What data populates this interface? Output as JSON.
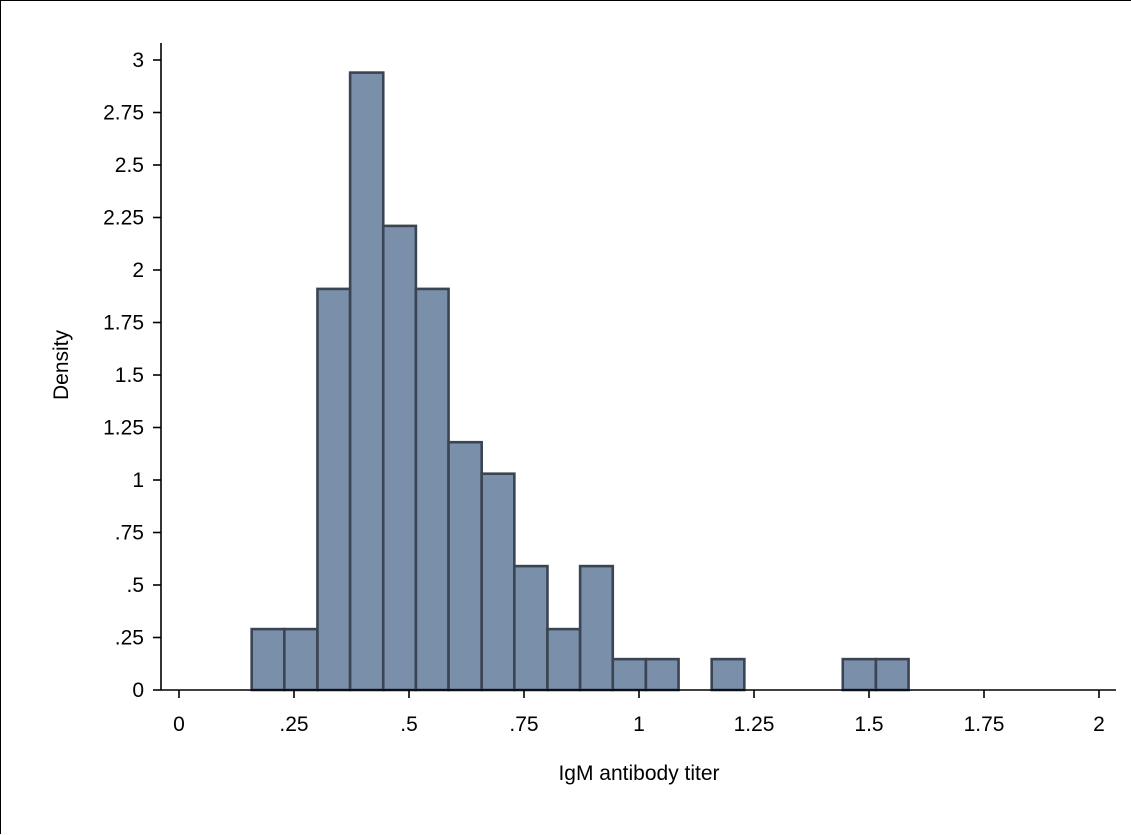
{
  "chart_data": {
    "type": "bar",
    "subtype": "histogram",
    "title": "",
    "xlabel": "IgM antibody titer",
    "ylabel": "Density",
    "xlim": [
      0,
      2
    ],
    "ylim": [
      0,
      3
    ],
    "x_ticks": [
      0,
      0.25,
      0.5,
      0.75,
      1,
      1.25,
      1.5,
      1.75,
      2
    ],
    "x_tick_labels": [
      "0",
      ".25",
      ".5",
      ".75",
      "1",
      "1.25",
      "1.5",
      "1.75",
      "2"
    ],
    "y_ticks": [
      0,
      0.25,
      0.5,
      0.75,
      1,
      1.25,
      1.5,
      1.75,
      2,
      2.25,
      2.5,
      2.75,
      3
    ],
    "y_tick_labels": [
      "0",
      ".25",
      ".5",
      ".75",
      "1",
      "1.25",
      "1.5",
      "1.75",
      "2",
      "2.25",
      "2.5",
      "2.75",
      "3"
    ],
    "bin_start": 0.158,
    "bin_width": 0.0714,
    "bins": [
      {
        "x0": 0.158,
        "x1": 0.229,
        "value": 0.29
      },
      {
        "x0": 0.229,
        "x1": 0.301,
        "value": 0.29
      },
      {
        "x0": 0.301,
        "x1": 0.372,
        "value": 1.91
      },
      {
        "x0": 0.372,
        "x1": 0.444,
        "value": 2.94
      },
      {
        "x0": 0.444,
        "x1": 0.515,
        "value": 2.21
      },
      {
        "x0": 0.515,
        "x1": 0.586,
        "value": 1.91
      },
      {
        "x0": 0.586,
        "x1": 0.658,
        "value": 1.18
      },
      {
        "x0": 0.658,
        "x1": 0.729,
        "value": 1.03
      },
      {
        "x0": 0.729,
        "x1": 0.801,
        "value": 0.59
      },
      {
        "x0": 0.801,
        "x1": 0.872,
        "value": 0.29
      },
      {
        "x0": 0.872,
        "x1": 0.943,
        "value": 0.59
      },
      {
        "x0": 0.943,
        "x1": 1.015,
        "value": 0.147
      },
      {
        "x0": 1.015,
        "x1": 1.086,
        "value": 0.147
      },
      {
        "x0": 1.158,
        "x1": 1.229,
        "value": 0.147
      },
      {
        "x0": 1.443,
        "x1": 1.515,
        "value": 0.147
      },
      {
        "x0": 1.515,
        "x1": 1.586,
        "value": 0.147
      }
    ],
    "grid": false,
    "legend": "none",
    "bar_fill": "#7a90aa",
    "bar_edge": "#3a4452"
  }
}
